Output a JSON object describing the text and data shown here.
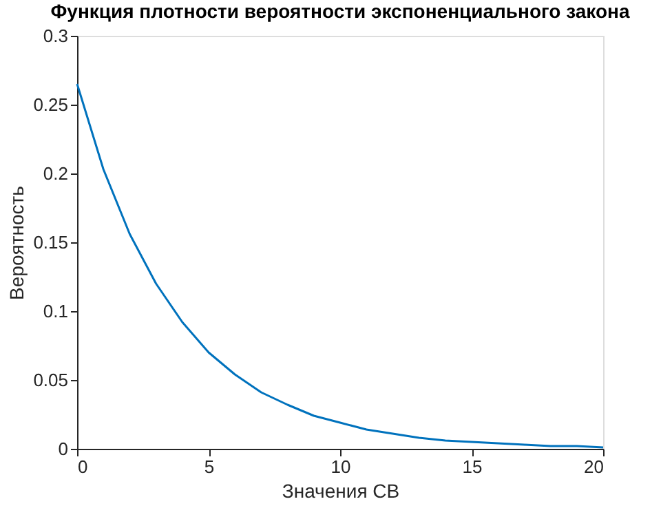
{
  "chart_data": {
    "type": "line",
    "title": "Функция плотности вероятности экспоненциального закона",
    "xlabel": "Значения СВ",
    "ylabel": "Вероятность",
    "x": [
      0,
      1,
      2,
      3,
      4,
      5,
      6,
      7,
      8,
      9,
      10,
      11,
      12,
      13,
      14,
      15,
      16,
      17,
      18,
      19,
      20
    ],
    "series": [
      {
        "color": "#0072bd",
        "values": [
          0.265,
          0.203,
          0.156,
          0.12,
          0.092,
          0.07,
          0.054,
          0.041,
          0.032,
          0.024,
          0.019,
          0.014,
          0.011,
          0.008,
          0.006,
          0.005,
          0.004,
          0.003,
          0.002,
          0.002,
          0.001
        ]
      }
    ],
    "xlim": [
      0,
      20
    ],
    "xticks": [
      0,
      5,
      10,
      15,
      20
    ],
    "ylim": [
      0,
      0.3
    ],
    "yticks": [
      0,
      0.05,
      0.1,
      0.15,
      0.2,
      0.25,
      0.3
    ],
    "grid": false,
    "legend": false,
    "marker": "none",
    "line_style": "solid"
  }
}
